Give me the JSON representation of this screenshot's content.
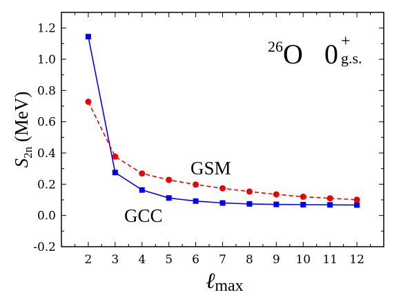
{
  "chart_data": {
    "type": "line",
    "x": [
      2,
      3,
      4,
      5,
      6,
      7,
      8,
      9,
      10,
      11,
      12
    ],
    "xlim": [
      1,
      13
    ],
    "ylim": [
      -0.2,
      1.3
    ],
    "xticks": [
      2,
      3,
      4,
      5,
      6,
      7,
      8,
      9,
      10,
      11,
      12
    ],
    "yticks": [
      -0.2,
      0.0,
      0.2,
      0.4,
      0.6,
      0.8,
      1.0,
      1.2
    ],
    "ytick_labels": [
      "-0.2",
      "0.0",
      "0.2",
      "0.4",
      "0.6",
      "0.8",
      "1.0",
      "1.2"
    ],
    "xlabel_main": "ℓ",
    "xlabel_sub": "max",
    "ylabel_main": "S",
    "ylabel_sub": "2n",
    "ylabel_unit": " (MeV)",
    "annotation": {
      "mass_number": "26",
      "element": "O",
      "state": "0",
      "state_sup": "+",
      "state_sub": "g.s."
    },
    "grid": false,
    "series": [
      {
        "name": "GCC",
        "color": "#0000ee",
        "marker": "square",
        "line_style": "solid",
        "values": [
          1.145,
          0.275,
          0.163,
          0.112,
          0.092,
          0.08,
          0.074,
          0.071,
          0.069,
          0.068,
          0.067
        ]
      },
      {
        "name": "GSM",
        "color": "#ee0000",
        "marker": "circle",
        "line_style": "dashed",
        "values": [
          0.728,
          0.377,
          0.269,
          0.228,
          0.198,
          0.174,
          0.153,
          0.135,
          0.12,
          0.11,
          0.101
        ]
      }
    ]
  }
}
